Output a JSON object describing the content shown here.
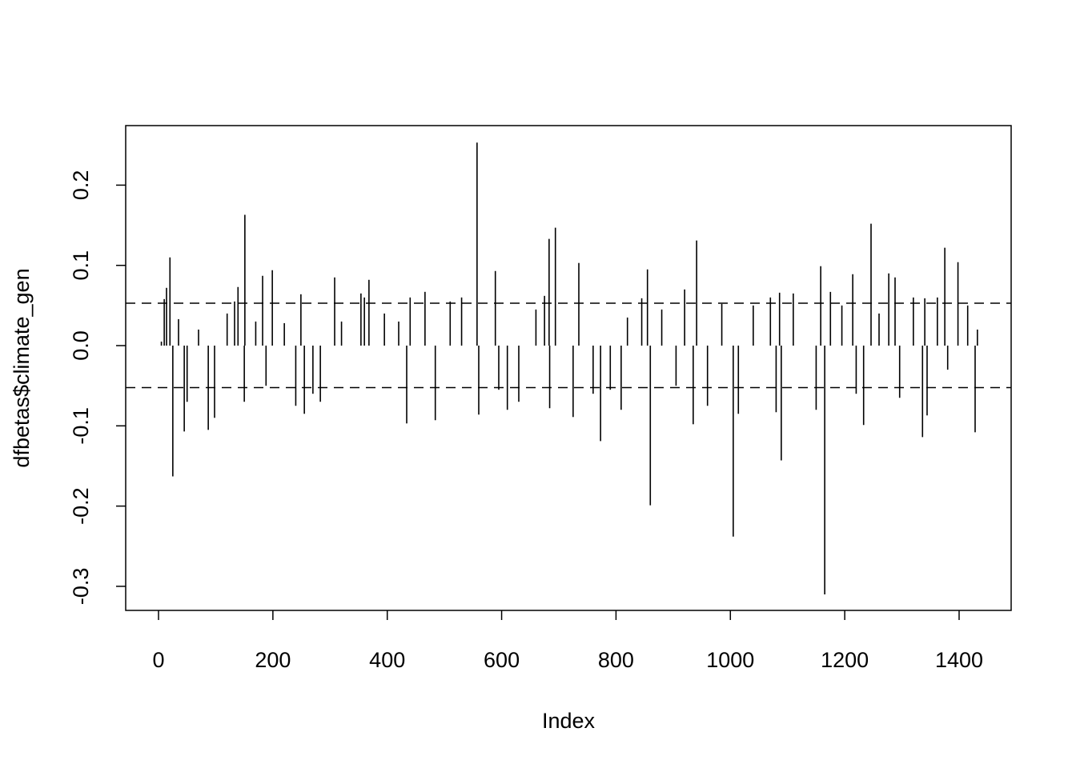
{
  "chart_data": {
    "type": "spike",
    "xlabel": "Index",
    "ylabel": "dfbetas$climate_gen",
    "color": "#000000",
    "xlim": [
      -57.4,
      1491
    ],
    "ylim": [
      -0.33,
      0.2742
    ],
    "xticks": [
      0,
      200,
      400,
      600,
      800,
      1000,
      1200,
      1400
    ],
    "yticks": [
      {
        "value": -0.3,
        "label": "-0.3"
      },
      {
        "value": -0.2,
        "label": "-0.2"
      },
      {
        "value": -0.1,
        "label": "-0.1"
      },
      {
        "value": 0,
        "label": "0.0"
      },
      {
        "value": 0.1,
        "label": "0.1"
      },
      {
        "value": 0.2,
        "label": "0.2"
      }
    ],
    "hlines": [
      0.0528,
      -0.0523
    ],
    "x": [
      5,
      10,
      14,
      20,
      25,
      35,
      45,
      50,
      70,
      87,
      98,
      120,
      133,
      139,
      150,
      151,
      170,
      182,
      188,
      199,
      220,
      240,
      249,
      255,
      270,
      283,
      308,
      320,
      354,
      360,
      368,
      395,
      420,
      434,
      440,
      466,
      484,
      510,
      530,
      557,
      560,
      589,
      595,
      610,
      630,
      660,
      675,
      683,
      684,
      694,
      725,
      735,
      760,
      773,
      790,
      809,
      820,
      845,
      855,
      860,
      880,
      905,
      920,
      935,
      941,
      960,
      985,
      1005,
      1014,
      1040,
      1070,
      1080,
      1086,
      1089,
      1110,
      1150,
      1158,
      1165,
      1175,
      1195,
      1214,
      1220,
      1233,
      1246,
      1260,
      1277,
      1288,
      1296,
      1320,
      1336,
      1340,
      1344,
      1362,
      1375,
      1380,
      1398,
      1415,
      1428,
      1432
    ],
    "values": [
      0.005,
      0.058,
      0.072,
      0.11,
      -0.163,
      0.033,
      -0.107,
      -0.07,
      0.02,
      -0.105,
      -0.09,
      0.04,
      0.055,
      0.073,
      -0.07,
      0.163,
      0.03,
      0.087,
      -0.05,
      0.094,
      0.028,
      -0.075,
      0.064,
      -0.085,
      -0.06,
      -0.07,
      0.085,
      0.03,
      0.065,
      0.06,
      0.082,
      0.04,
      0.03,
      -0.097,
      0.06,
      0.067,
      -0.093,
      0.055,
      0.06,
      0.253,
      -0.086,
      0.093,
      -0.055,
      -0.08,
      -0.07,
      0.045,
      0.062,
      0.133,
      -0.078,
      0.147,
      -0.089,
      0.103,
      -0.06,
      -0.119,
      -0.055,
      -0.08,
      0.035,
      0.059,
      0.095,
      -0.199,
      0.045,
      -0.05,
      0.07,
      -0.098,
      0.131,
      -0.075,
      0.052,
      -0.238,
      -0.085,
      0.05,
      0.06,
      -0.083,
      0.066,
      -0.143,
      0.065,
      -0.08,
      0.099,
      -0.31,
      0.067,
      0.05,
      0.089,
      -0.06,
      -0.099,
      0.152,
      0.04,
      0.09,
      0.085,
      -0.065,
      0.06,
      -0.114,
      0.059,
      -0.087,
      0.06,
      0.122,
      -0.03,
      0.104,
      0.05,
      -0.108,
      0.02
    ]
  }
}
